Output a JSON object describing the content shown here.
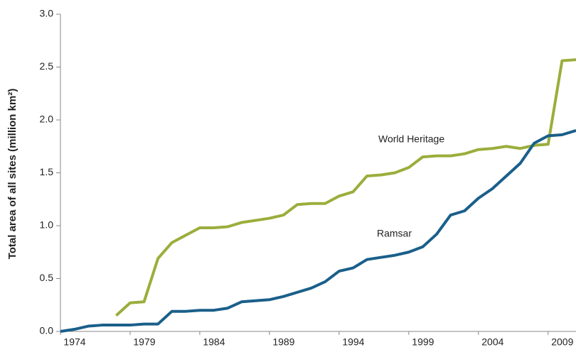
{
  "chart_data": {
    "type": "line",
    "y_label": "Total area of all sites (million km²)",
    "x": [
      1974,
      1975,
      1976,
      1977,
      1978,
      1979,
      1980,
      1981,
      1982,
      1983,
      1984,
      1985,
      1986,
      1987,
      1988,
      1989,
      1990,
      1991,
      1992,
      1993,
      1994,
      1995,
      1996,
      1997,
      1998,
      1999,
      2000,
      2001,
      2002,
      2003,
      2004,
      2005,
      2006,
      2007,
      2008,
      2009,
      2010,
      2011
    ],
    "series": [
      {
        "name": "World Heritage",
        "color": "#9aae3c",
        "values": [
          null,
          null,
          null,
          null,
          0.15,
          0.27,
          0.28,
          0.69,
          0.84,
          0.91,
          0.98,
          0.98,
          0.99,
          1.03,
          1.05,
          1.07,
          1.1,
          1.2,
          1.21,
          1.21,
          1.28,
          1.32,
          1.47,
          1.48,
          1.5,
          1.55,
          1.65,
          1.66,
          1.66,
          1.68,
          1.72,
          1.73,
          1.75,
          1.73,
          1.76,
          1.77,
          2.56,
          2.57
        ]
      },
      {
        "name": "Ramsar",
        "color": "#1a5f8a",
        "values": [
          0,
          0.02,
          0.05,
          0.06,
          0.06,
          0.06,
          0.07,
          0.07,
          0.19,
          0.19,
          0.2,
          0.2,
          0.22,
          0.28,
          0.29,
          0.3,
          0.33,
          0.37,
          0.41,
          0.47,
          0.57,
          0.6,
          0.68,
          0.7,
          0.72,
          0.75,
          0.8,
          0.92,
          1.1,
          1.14,
          1.26,
          1.35,
          1.47,
          1.59,
          1.78,
          1.85,
          1.86,
          1.9
        ]
      }
    ],
    "xlim": [
      1974,
      2011
    ],
    "xticks": [
      1974,
      1979,
      1984,
      1989,
      1994,
      1999,
      2004,
      2009
    ],
    "ylim": [
      0,
      3
    ],
    "yticks": [
      {
        "value": 0,
        "label": "0.0"
      },
      {
        "value": 0.5,
        "label": "0.5"
      },
      {
        "value": 1,
        "label": "1.0"
      },
      {
        "value": 1.5,
        "label": "1.5"
      },
      {
        "value": 2,
        "label": "2.0"
      },
      {
        "value": 2.5,
        "label": "2.5"
      },
      {
        "value": 3,
        "label": "3.0"
      }
    ],
    "grid": false
  }
}
